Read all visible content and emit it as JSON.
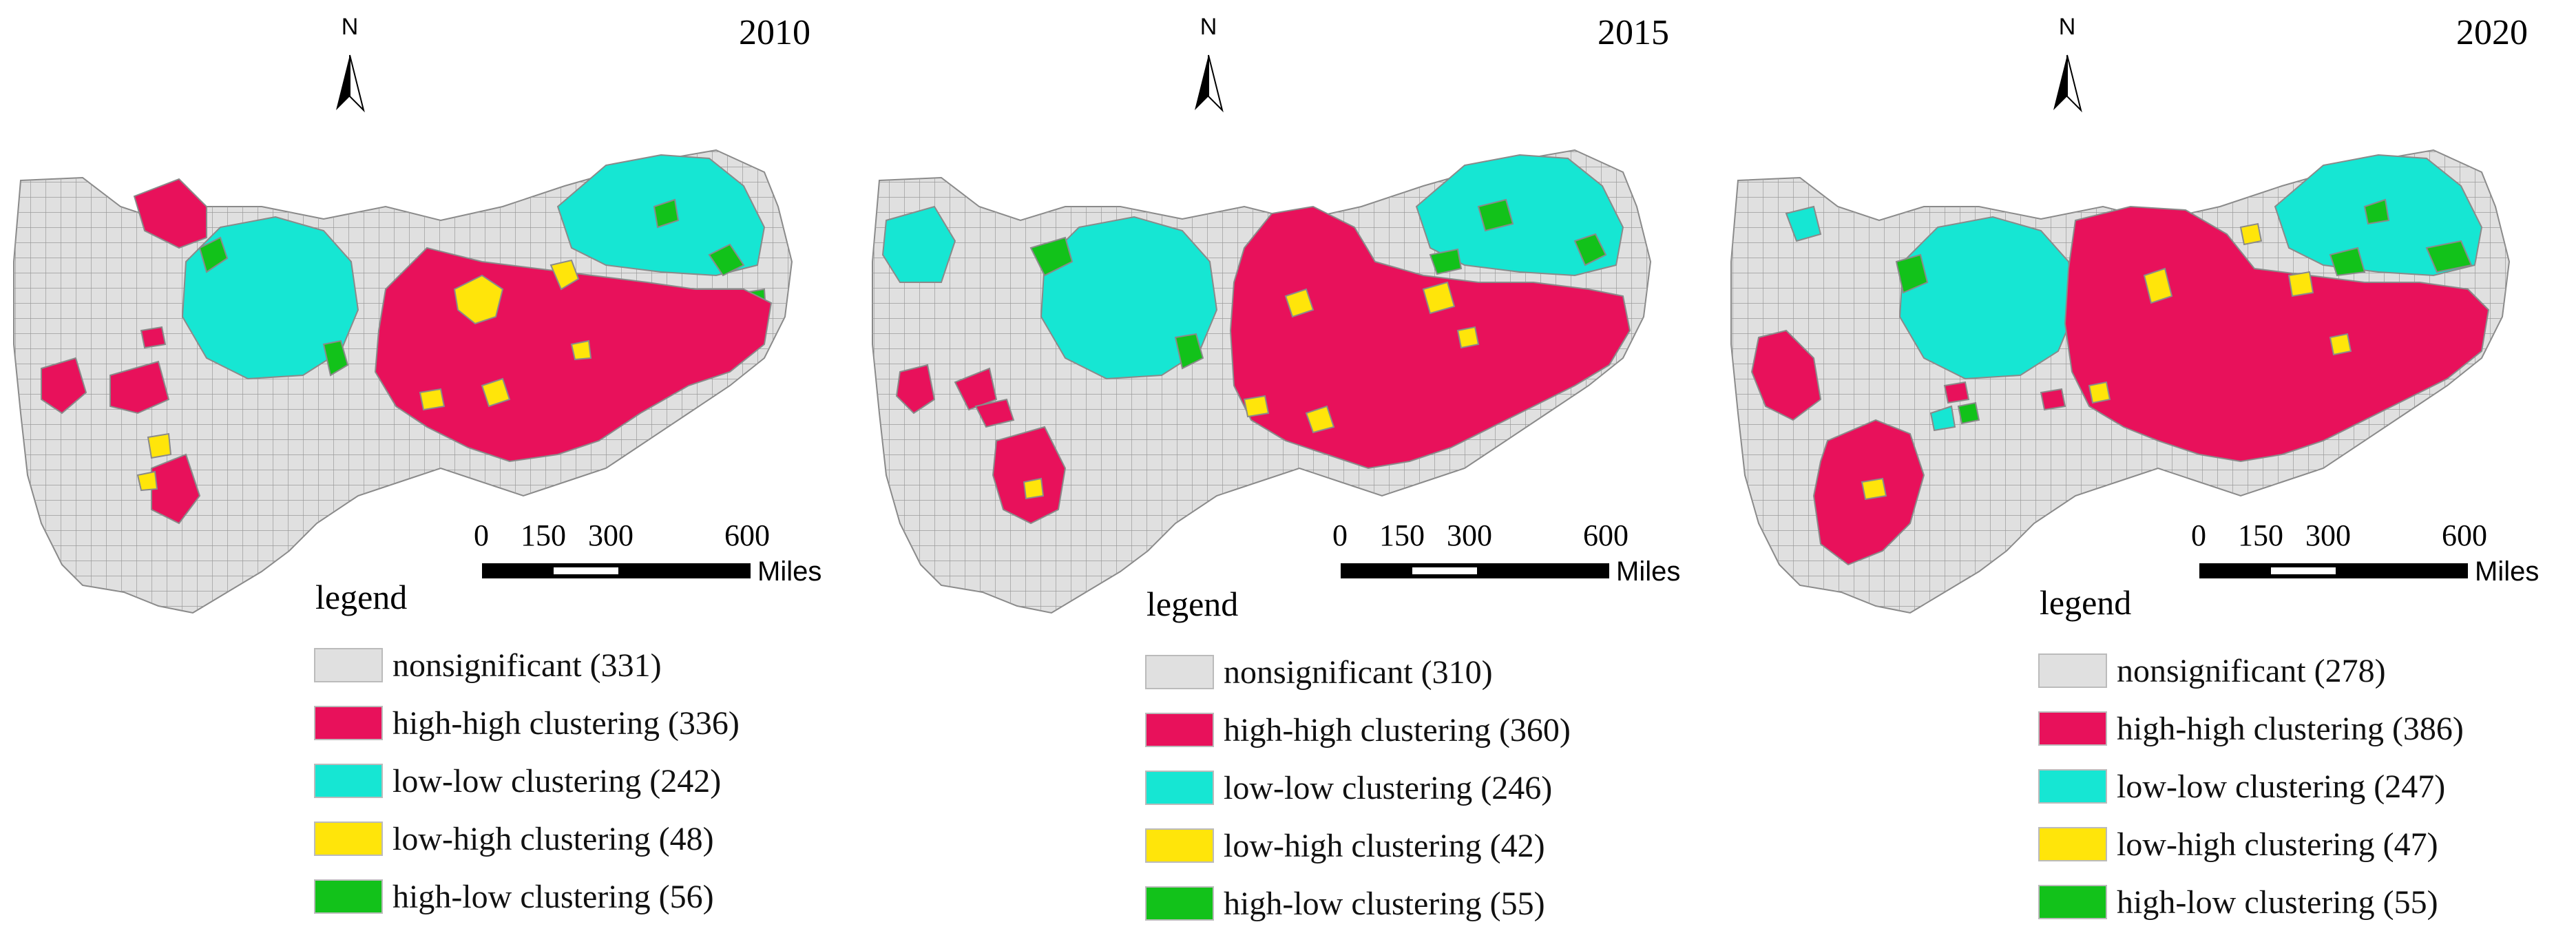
{
  "colors": {
    "nonsignificant": "#e0e0e0",
    "high_high": "#e8115b",
    "low_low": "#16e6d3",
    "low_high": "#ffe50a",
    "high_low": "#12c21a",
    "border": "#8a8a8a"
  },
  "north_label": "N",
  "scale": {
    "ticks": [
      "0",
      "150",
      "300",
      "600"
    ],
    "unit": "Miles"
  },
  "legend_title": "legend",
  "panels": [
    {
      "year": "2010",
      "legend": [
        {
          "key": "nonsignificant",
          "label": "nonsignificant (331)"
        },
        {
          "key": "high_high",
          "label": "high-high clustering (336)"
        },
        {
          "key": "low_low",
          "label": "low-low clustering (242)"
        },
        {
          "key": "low_high",
          "label": "low-high clustering (48)"
        },
        {
          "key": "high_low",
          "label": "high-low clustering (56)"
        }
      ]
    },
    {
      "year": "2015",
      "legend": [
        {
          "key": "nonsignificant",
          "label": "nonsignificant (310)"
        },
        {
          "key": "high_high",
          "label": "high-high clustering (360)"
        },
        {
          "key": "low_low",
          "label": "low-low clustering (246)"
        },
        {
          "key": "low_high",
          "label": "low-high clustering (42)"
        },
        {
          "key": "high_low",
          "label": "high-low clustering (55)"
        }
      ]
    },
    {
      "year": "2020",
      "legend": [
        {
          "key": "nonsignificant",
          "label": "nonsignificant (278)"
        },
        {
          "key": "high_high",
          "label": "high-high clustering (386)"
        },
        {
          "key": "low_low",
          "label": "low-low clustering (247)"
        },
        {
          "key": "low_high",
          "label": "low-high clustering (47)"
        },
        {
          "key": "high_low",
          "label": "high-low clustering (55)"
        }
      ]
    }
  ]
}
